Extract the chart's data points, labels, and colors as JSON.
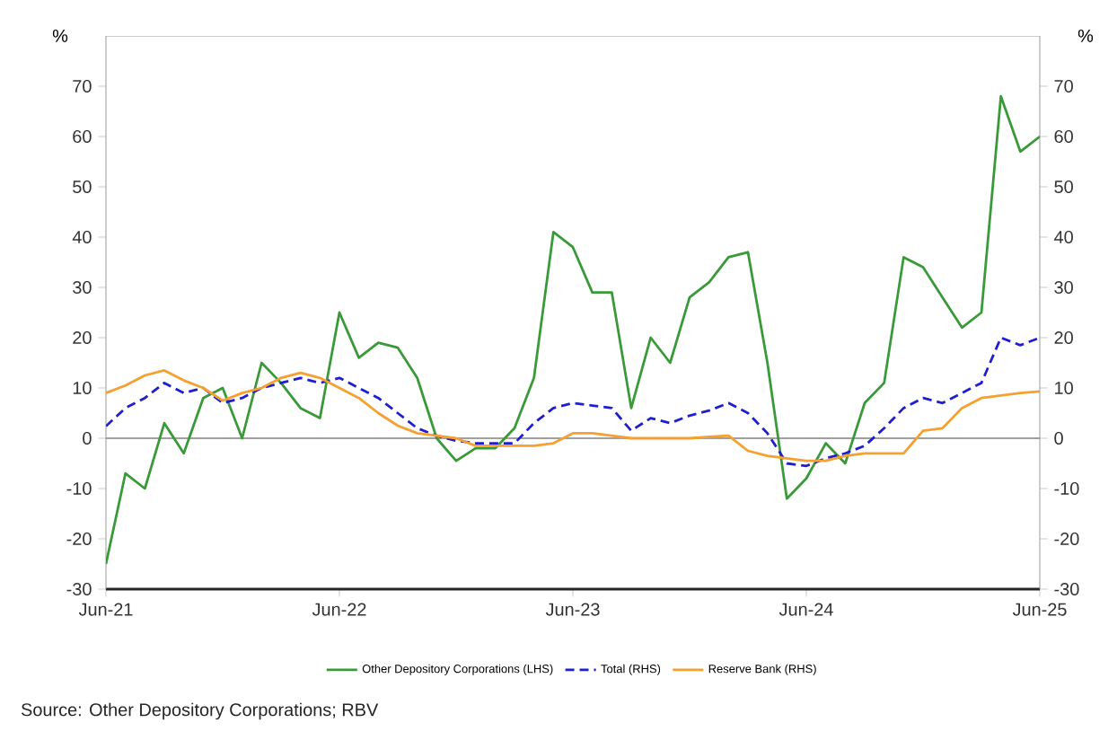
{
  "chart_data": {
    "type": "line",
    "x": [
      "2021-06",
      "2021-07",
      "2021-08",
      "2021-09",
      "2021-10",
      "2021-11",
      "2021-12",
      "2022-01",
      "2022-02",
      "2022-03",
      "2022-04",
      "2022-05",
      "2022-06",
      "2022-07",
      "2022-08",
      "2022-09",
      "2022-10",
      "2022-11",
      "2022-12",
      "2023-01",
      "2023-02",
      "2023-03",
      "2023-04",
      "2023-05",
      "2023-06",
      "2023-07",
      "2023-08",
      "2023-09",
      "2023-10",
      "2023-11",
      "2023-12",
      "2024-01",
      "2024-02",
      "2024-03",
      "2024-04",
      "2024-05",
      "2024-06",
      "2024-07",
      "2024-08",
      "2024-09",
      "2024-10",
      "2024-11",
      "2024-12",
      "2025-01",
      "2025-02",
      "2025-03",
      "2025-04",
      "2025-05",
      "2025-06"
    ],
    "series": [
      {
        "name": "Other Depository Corporations (LHS)",
        "color": "#3a9a3a",
        "line_style": "solid",
        "axis": "y",
        "values": [
          -25,
          -7,
          -10,
          3,
          -3,
          8,
          10,
          0,
          15,
          11,
          6,
          4,
          25,
          16,
          19,
          18,
          12,
          0,
          -4.5,
          -2,
          -2,
          2,
          12,
          41,
          38,
          29,
          29,
          6,
          20,
          15,
          28,
          31,
          36,
          37,
          15,
          -12,
          -8,
          -1,
          -5,
          7,
          11,
          36,
          34,
          28,
          22,
          25,
          68,
          57,
          60
        ]
      },
      {
        "name": "Total (RHS)",
        "color": "#1f1fd0",
        "line_style": "dashed",
        "axis": "y2",
        "values": [
          2.4,
          6,
          8,
          11,
          9,
          10,
          7,
          8,
          10,
          11,
          12,
          11,
          12,
          10,
          8,
          5,
          2,
          0.5,
          -0.5,
          -1,
          -1,
          -1,
          3,
          6,
          7,
          6.5,
          6,
          1.5,
          4,
          3,
          4.5,
          5.5,
          7,
          5,
          1,
          -5,
          -5.5,
          -4,
          -3,
          -1.5,
          2,
          6,
          8,
          7,
          9,
          11,
          20,
          18.5,
          20
        ]
      },
      {
        "name": "Reserve Bank (RHS)",
        "color": "#f5a030",
        "line_style": "solid",
        "axis": "y2",
        "values": [
          9,
          10.5,
          12.5,
          13.5,
          11.5,
          10,
          7.5,
          9,
          10,
          12,
          13,
          12,
          10,
          8,
          5,
          2.5,
          1,
          0.5,
          0,
          -1.5,
          -1.5,
          -1.5,
          -1.5,
          -1,
          1,
          1,
          0.5,
          0,
          0,
          0,
          0,
          0.3,
          0.5,
          -2.5,
          -3.5,
          -4,
          -4.5,
          -4.5,
          -3.5,
          -3,
          -3,
          -3,
          1.5,
          2,
          6,
          8,
          8.5,
          9,
          9.3
        ]
      }
    ],
    "xlim": [
      "2021-06",
      "2025-06"
    ],
    "xticks": [
      {
        "value": "2021-06",
        "label": "Jun-21"
      },
      {
        "value": "2022-06",
        "label": "Jun-22"
      },
      {
        "value": "2023-06",
        "label": "Jun-23"
      },
      {
        "value": "2024-06",
        "label": "Jun-24"
      },
      {
        "value": "2025-06",
        "label": "Jun-25"
      }
    ],
    "ylim": [
      -30,
      80
    ],
    "yticks": [
      -30,
      -20,
      -10,
      0,
      10,
      20,
      30,
      40,
      50,
      60,
      70
    ],
    "y2lim": [
      -30,
      80
    ],
    "y2ticks": [
      -30,
      -20,
      -10,
      0,
      10,
      20,
      30,
      40,
      50,
      60,
      70
    ],
    "ylabel": "%",
    "y2label": "%",
    "ref_lines": [
      {
        "axis": "y",
        "value": 0,
        "color": "#808080"
      }
    ],
    "legend": "bottom",
    "annotations": [
      "Source: Other Depository Corporations; RBV"
    ]
  }
}
